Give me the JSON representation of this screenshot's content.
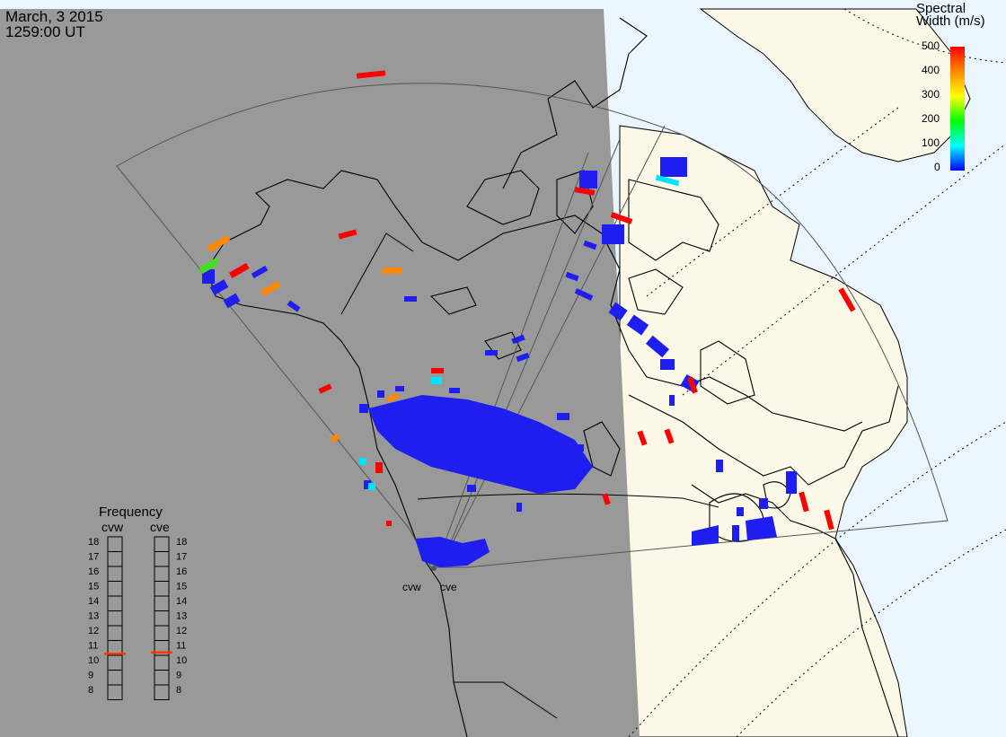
{
  "header": {
    "date": "March, 3 2015",
    "time": "1259:00 UT"
  },
  "colorbar": {
    "title_line1": "Spectral",
    "title_line2": "Width (m/s)",
    "ticks": [
      "0",
      "100",
      "200",
      "300",
      "400",
      "500"
    ],
    "colors": [
      "#0000ff",
      "#00ffff",
      "#00ff00",
      "#ffff00",
      "#ff8800",
      "#ff0000"
    ]
  },
  "radars": [
    {
      "code": "cvw",
      "label": "cvw"
    },
    {
      "code": "cve",
      "label": "cve"
    }
  ],
  "frequency_panel": {
    "title": "Frequency",
    "column_labels": [
      "cvw",
      "cve"
    ],
    "scale": [
      "18",
      "17",
      "16",
      "15",
      "14",
      "13",
      "12",
      "11",
      "10",
      "9",
      "8"
    ],
    "cvw_mhz": 10.6,
    "cve_mhz": 10.7,
    "marker_color": "#ff3300"
  },
  "colors": {
    "night": "#999999",
    "day_land": "#fbf8e8",
    "day_ocean": "#eaf5fd",
    "scatter_low": "#1e1ef0",
    "scatter_high": "#ff0000"
  }
}
